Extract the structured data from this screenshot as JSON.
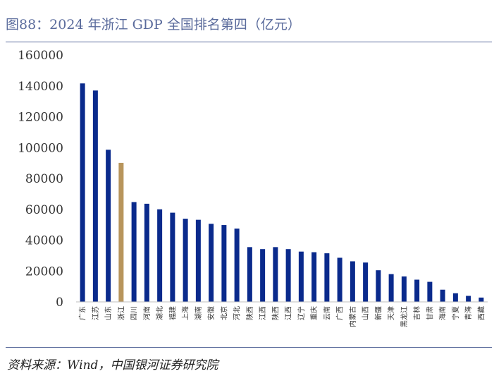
{
  "title": "图88：2024 年浙江 GDP 全国排名第四（亿元）",
  "source": "资料来源：Wind，中国银河证券研究院",
  "colors": {
    "default": "#0a2a8c",
    "highlight": "#b8955c"
  },
  "chart_data": {
    "type": "bar",
    "categories": [
      "广东",
      "江苏",
      "山东",
      "浙江",
      "四川",
      "河南",
      "湖北",
      "福建",
      "上海",
      "湖南",
      "安徽",
      "北京",
      "河北",
      "陕西",
      "江西",
      "陕西",
      "江西",
      "辽宁",
      "重庆",
      "云南",
      "广西",
      "内蒙古",
      "山西",
      "新疆",
      "天津",
      "黑龙江",
      "吉林",
      "甘肃",
      "海南",
      "宁夏",
      "青海",
      "西藏"
    ],
    "values": [
      141600,
      137000,
      98600,
      90100,
      64700,
      63600,
      60000,
      57800,
      53900,
      53200,
      50600,
      49800,
      47500,
      35500,
      34200,
      35500,
      34200,
      32600,
      32200,
      31500,
      28600,
      26300,
      25500,
      20500,
      18000,
      16500,
      14400,
      13000,
      7900,
      5600,
      3900,
      2800
    ],
    "highlight_index": 3,
    "title": "",
    "xlabel": "",
    "ylabel": "",
    "ylim": [
      0,
      160000
    ],
    "yticks": [
      0,
      20000,
      40000,
      60000,
      80000,
      100000,
      120000,
      140000,
      160000
    ],
    "grid": false,
    "legend": "none"
  }
}
